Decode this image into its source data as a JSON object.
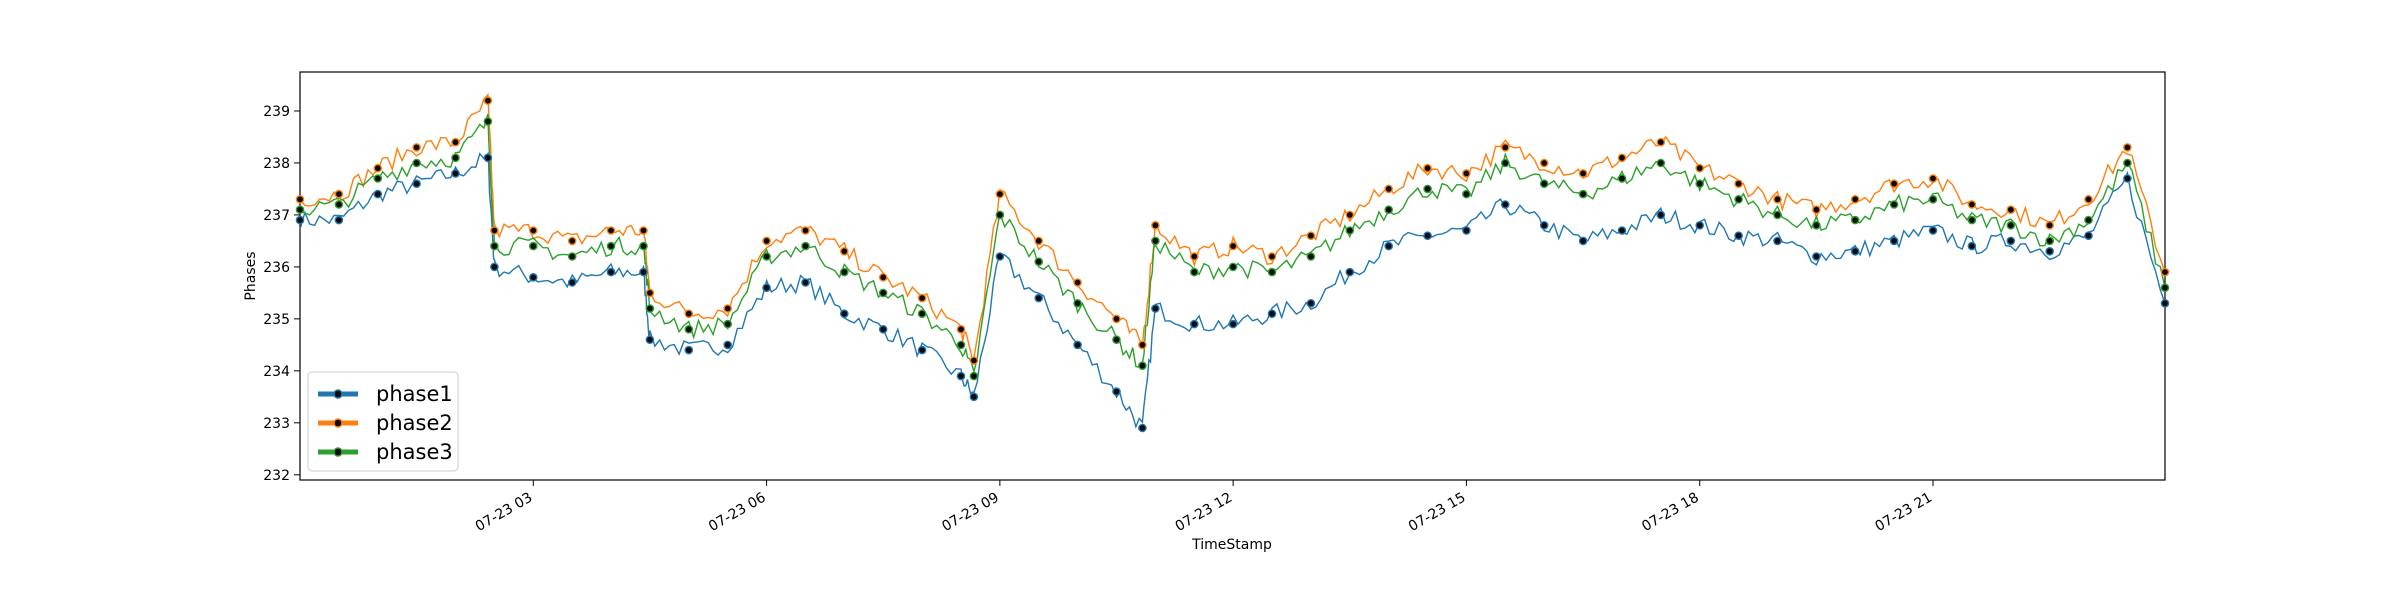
{
  "chart_data": {
    "type": "line",
    "title": "",
    "xlabel": "TimeStamp",
    "ylabel": "Phases",
    "xlim": [
      "2024-07-23T00:00",
      "2024-07-23T23:59"
    ],
    "ylim": [
      231.9,
      239.75
    ],
    "grid": false,
    "legend_position": "lower-left",
    "x_tick_labels": [
      {
        "x": "2024-07-23T03:00",
        "label": "07-23 03"
      },
      {
        "x": "2024-07-23T06:00",
        "label": "07-23 06"
      },
      {
        "x": "2024-07-23T09:00",
        "label": "07-23 09"
      },
      {
        "x": "2024-07-23T12:00",
        "label": "07-23 12"
      },
      {
        "x": "2024-07-23T15:00",
        "label": "07-23 15"
      },
      {
        "x": "2024-07-23T18:00",
        "label": "07-23 18"
      },
      {
        "x": "2024-07-23T21:00",
        "label": "07-23 21"
      }
    ],
    "y_ticks": [
      232,
      233,
      234,
      235,
      236,
      237,
      238,
      239
    ],
    "x": [
      "00:00",
      "00:30",
      "01:00",
      "01:30",
      "02:00",
      "02:25",
      "02:30",
      "03:00",
      "03:30",
      "04:00",
      "04:25",
      "04:30",
      "05:00",
      "05:30",
      "06:00",
      "06:30",
      "07:00",
      "07:30",
      "08:00",
      "08:30",
      "08:40",
      "09:00",
      "09:30",
      "10:00",
      "10:30",
      "10:50",
      "11:00",
      "11:30",
      "12:00",
      "12:30",
      "13:00",
      "13:30",
      "14:00",
      "14:30",
      "15:00",
      "15:30",
      "16:00",
      "16:30",
      "17:00",
      "17:30",
      "18:00",
      "18:30",
      "19:00",
      "19:30",
      "20:00",
      "20:30",
      "21:00",
      "21:30",
      "22:00",
      "22:30",
      "23:00",
      "23:30",
      "23:59"
    ],
    "series": [
      {
        "name": "phase1",
        "color": "#1f77b4",
        "values": [
          236.9,
          236.9,
          237.4,
          237.6,
          237.8,
          238.1,
          236.0,
          235.8,
          235.7,
          235.9,
          235.9,
          234.6,
          234.4,
          234.5,
          235.6,
          235.7,
          235.1,
          234.8,
          234.4,
          233.9,
          233.5,
          236.2,
          235.4,
          234.5,
          233.6,
          232.9,
          235.2,
          234.9,
          234.9,
          235.1,
          235.3,
          235.9,
          236.4,
          236.6,
          236.7,
          237.2,
          236.8,
          236.5,
          236.7,
          237.0,
          236.8,
          236.6,
          236.5,
          236.2,
          236.3,
          236.5,
          236.7,
          236.4,
          236.5,
          236.3,
          236.6,
          237.7,
          235.3
        ]
      },
      {
        "name": "phase2",
        "color": "#ff7f0e",
        "values": [
          237.3,
          237.4,
          237.9,
          238.3,
          238.4,
          239.2,
          236.7,
          236.7,
          236.5,
          236.7,
          236.7,
          235.5,
          235.1,
          235.2,
          236.5,
          236.7,
          236.3,
          235.8,
          235.4,
          234.8,
          234.2,
          237.4,
          236.5,
          235.7,
          235.0,
          234.5,
          236.8,
          236.2,
          236.4,
          236.2,
          236.6,
          237.0,
          237.5,
          237.9,
          237.8,
          238.3,
          238.0,
          237.8,
          238.1,
          238.4,
          237.9,
          237.6,
          237.3,
          237.1,
          237.3,
          237.6,
          237.7,
          237.2,
          237.1,
          236.8,
          237.3,
          238.3,
          235.9
        ]
      },
      {
        "name": "phase3",
        "color": "#2ca02c",
        "values": [
          237.1,
          237.2,
          237.7,
          238.0,
          238.1,
          238.8,
          236.4,
          236.4,
          236.2,
          236.4,
          236.4,
          235.2,
          234.8,
          234.9,
          236.2,
          236.4,
          235.9,
          235.5,
          235.1,
          234.5,
          233.9,
          237.0,
          236.1,
          235.3,
          234.6,
          234.1,
          236.5,
          235.9,
          236.0,
          235.9,
          236.2,
          236.7,
          237.1,
          237.5,
          237.4,
          238.0,
          237.6,
          237.4,
          237.7,
          238.0,
          237.6,
          237.3,
          237.0,
          236.8,
          236.9,
          237.2,
          237.3,
          236.9,
          236.8,
          236.5,
          236.9,
          238.0,
          235.6
        ]
      }
    ]
  }
}
